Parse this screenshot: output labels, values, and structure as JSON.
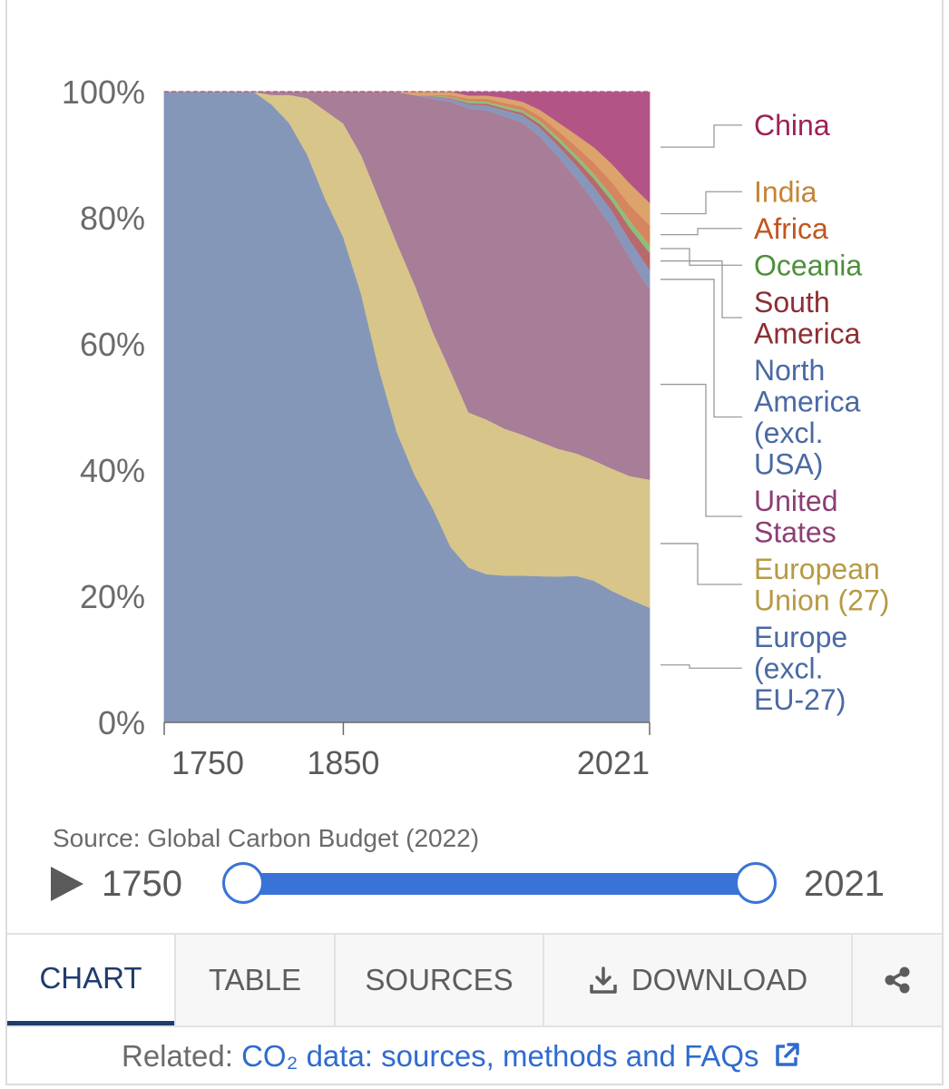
{
  "chart_data": {
    "type": "area",
    "stacking": "percent",
    "y_axis": {
      "min": 0,
      "max": 100,
      "ticks": [
        0,
        20,
        40,
        60,
        80,
        100
      ],
      "tick_format": "{v}%",
      "grid": true
    },
    "x_axis": {
      "min": 1750,
      "max": 2021,
      "ticks": [
        1750,
        1850,
        2021
      ]
    },
    "x": [
      1750,
      1800,
      1810,
      1820,
      1830,
      1840,
      1850,
      1860,
      1870,
      1880,
      1890,
      1900,
      1910,
      1920,
      1930,
      1940,
      1950,
      1960,
      1970,
      1980,
      1990,
      2000,
      2010,
      2021
    ],
    "series": [
      {
        "name": "Europe (excl. EU-27)",
        "label_lines": [
          "Europe",
          "(excl.",
          "EU-27)"
        ],
        "color": "#8497b8",
        "label_color": "#4a6aa3",
        "values": [
          100,
          100,
          98,
          95,
          90,
          83,
          77,
          68,
          56,
          46,
          39,
          34,
          28,
          25,
          24,
          24,
          24,
          24,
          24,
          24,
          23,
          21,
          19.5,
          17.5
        ]
      },
      {
        "name": "European Union (27)",
        "label_lines": [
          "European",
          "Union (27)"
        ],
        "color": "#d8c58a",
        "label_color": "#b69a44",
        "values": [
          0,
          0,
          1.5,
          4.5,
          9,
          14,
          18,
          22,
          27,
          30,
          30,
          28,
          28,
          25,
          25,
          24,
          23,
          22,
          21,
          20,
          19.5,
          19.5,
          19.5,
          19.5
        ]
      },
      {
        "name": "United States",
        "label_lines": [
          "United",
          "States"
        ],
        "color": "#a77d97",
        "label_color": "#8b3f74",
        "values": [
          0,
          0,
          0.5,
          0.5,
          1,
          3,
          5,
          10,
          17,
          24,
          30,
          37,
          43,
          49,
          50,
          51,
          51,
          50,
          48,
          45,
          42,
          38.5,
          34.5,
          29
        ]
      },
      {
        "name": "North America (excl. USA)",
        "label_lines": [
          "North",
          "America",
          "(excl.",
          "USA)"
        ],
        "color": "#8896bb",
        "label_color": "#4a6aa3",
        "values": [
          0,
          0,
          0,
          0,
          0,
          0,
          0,
          0,
          0,
          0,
          0,
          0.3,
          0.5,
          0.7,
          0.8,
          1,
          1.2,
          1.5,
          1.8,
          2.1,
          2.4,
          2.6,
          2.8,
          3
        ]
      },
      {
        "name": "South America",
        "label_lines": [
          "South",
          "America"
        ],
        "color": "#b8696d",
        "label_color": "#8e2e33",
        "values": [
          0,
          0,
          0,
          0,
          0,
          0,
          0,
          0,
          0,
          0,
          0,
          0.1,
          0.1,
          0.2,
          0.3,
          0.3,
          0.4,
          0.6,
          0.8,
          1,
          1.3,
          1.6,
          2,
          2.6
        ]
      },
      {
        "name": "Oceania",
        "label_lines": [
          "Oceania"
        ],
        "color": "#8cbf7a",
        "label_color": "#4d8f3a",
        "values": [
          0,
          0,
          0,
          0,
          0,
          0,
          0,
          0,
          0,
          0,
          0,
          0.1,
          0.2,
          0.3,
          0.3,
          0.4,
          0.4,
          0.5,
          0.6,
          0.7,
          0.8,
          0.9,
          1.1,
          1.2
        ]
      },
      {
        "name": "Africa",
        "label_lines": [
          "Africa"
        ],
        "color": "#d6855e",
        "label_color": "#c0561f",
        "values": [
          0,
          0,
          0,
          0,
          0,
          0,
          0,
          0,
          0,
          0,
          0,
          0.1,
          0.3,
          0.4,
          0.5,
          0.5,
          0.6,
          0.8,
          1.1,
          1.4,
          1.8,
          2.1,
          2.5,
          3
        ]
      },
      {
        "name": "India",
        "label_lines": [
          "India"
        ],
        "color": "#dca36b",
        "label_color": "#c48436",
        "values": [
          0,
          0,
          0,
          0,
          0,
          0,
          0,
          0,
          0,
          0,
          0.5,
          0.5,
          0.5,
          0.5,
          0.5,
          0.8,
          0.8,
          1,
          1.4,
          1.9,
          2.5,
          2.9,
          3.4,
          3.4
        ]
      },
      {
        "name": "China",
        "label_lines": [
          "China"
        ],
        "color": "#b25586",
        "label_color": "#9c2256",
        "values": [
          0,
          0,
          0,
          0,
          0,
          0,
          0,
          0,
          0,
          0,
          0,
          0,
          0,
          0.6,
          0.6,
          1,
          1.6,
          3,
          5,
          7,
          9,
          11.5,
          14.5,
          16.9
        ]
      }
    ]
  },
  "source_text": "Source: Global Carbon Budget (2022)",
  "timeline": {
    "start_label": "1750",
    "end_label": "2021"
  },
  "tabs": [
    {
      "label": "CHART",
      "active": true
    },
    {
      "label": "TABLE",
      "active": false
    },
    {
      "label": "SOURCES",
      "active": false
    },
    {
      "label": "DOWNLOAD",
      "active": false,
      "icon": "download-icon"
    },
    {
      "label": "",
      "active": false,
      "icon": "share-icon"
    }
  ],
  "related": {
    "prefix": "Related: ",
    "link_text": "CO₂ data: sources, methods and FAQs",
    "icon": "external-link-icon"
  }
}
